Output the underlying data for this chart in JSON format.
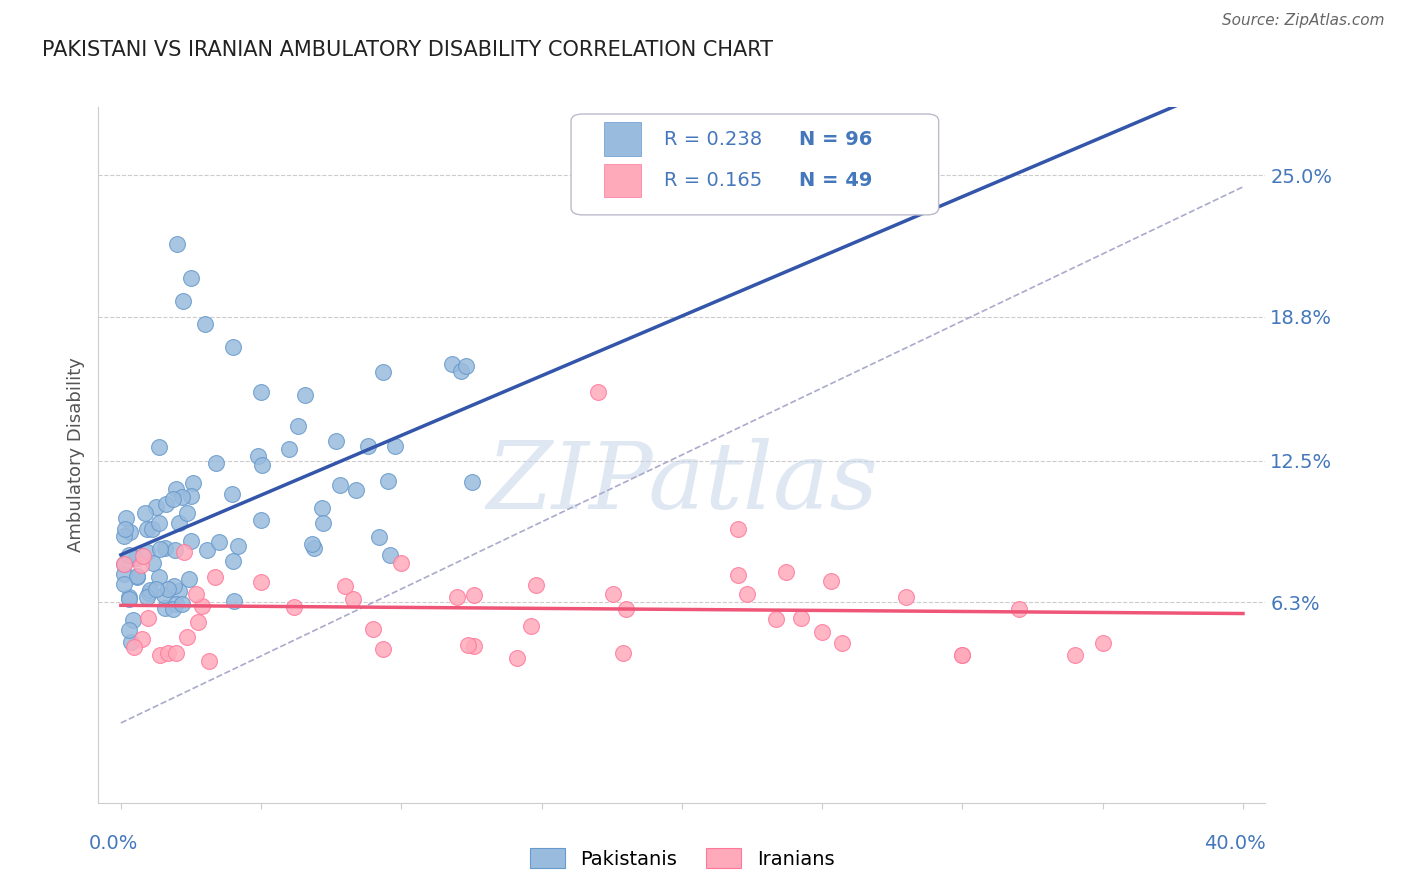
{
  "title": "PAKISTANI VS IRANIAN AMBULATORY DISABILITY CORRELATION CHART",
  "source": "Source: ZipAtlas.com",
  "ylabel": "Ambulatory Disability",
  "ytick_labels": [
    "6.3%",
    "12.5%",
    "18.8%",
    "25.0%"
  ],
  "ytick_values": [
    0.063,
    0.125,
    0.188,
    0.25
  ],
  "xlim": [
    0.0,
    0.4
  ],
  "ylim": [
    -0.03,
    0.28
  ],
  "pakistani_R": "0.238",
  "pakistani_N": "96",
  "iranian_R": "0.165",
  "iranian_N": "49",
  "pakistani_color": "#99BBDD",
  "pakistani_edge_color": "#6699CC",
  "iranian_color": "#FFAABB",
  "iranian_edge_color": "#FF7799",
  "pakistani_line_color": "#3355AA",
  "iranian_line_color": "#EE5577",
  "dashed_line_color": "#AAAACC",
  "watermark_color": "#C5D5E8",
  "watermark_text": "ZIPatlas",
  "grid_color": "#CCCCCC",
  "tick_color": "#4477BB",
  "title_color": "#222222",
  "source_color": "#666666",
  "ylabel_color": "#555555"
}
